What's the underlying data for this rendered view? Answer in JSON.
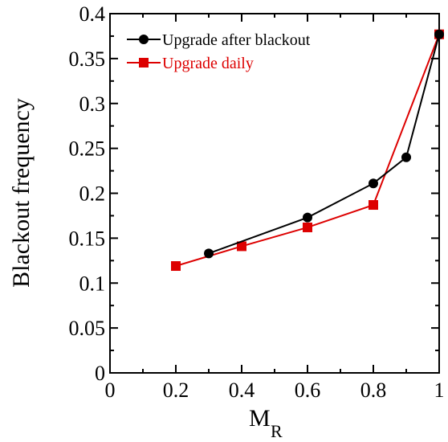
{
  "chart_data": {
    "type": "line",
    "xlabel": "M",
    "xlabel_subscript": "R",
    "ylabel": "Blackout frequency",
    "xlim": [
      0,
      1
    ],
    "ylim": [
      0,
      0.4
    ],
    "x_ticks": [
      "0",
      "0.2",
      "0.4",
      "0.6",
      "0.8",
      "1"
    ],
    "y_ticks": [
      "0",
      "0.05",
      "0.1",
      "0.15",
      "0.2",
      "0.25",
      "0.3",
      "0.35",
      "0.4"
    ],
    "grid": false,
    "legend_position": "top-left",
    "series": [
      {
        "name": "Upgrade after blackout",
        "color": "#000000",
        "marker": "circle",
        "x": [
          0.3,
          0.6,
          0.8,
          0.9,
          1.0
        ],
        "y": [
          0.133,
          0.173,
          0.211,
          0.24,
          0.377
        ]
      },
      {
        "name": "Upgrade daily",
        "color": "#dd0000",
        "marker": "square",
        "x": [
          0.2,
          0.4,
          0.6,
          0.8,
          1.0
        ],
        "y": [
          0.119,
          0.141,
          0.162,
          0.187,
          0.377
        ]
      }
    ]
  }
}
